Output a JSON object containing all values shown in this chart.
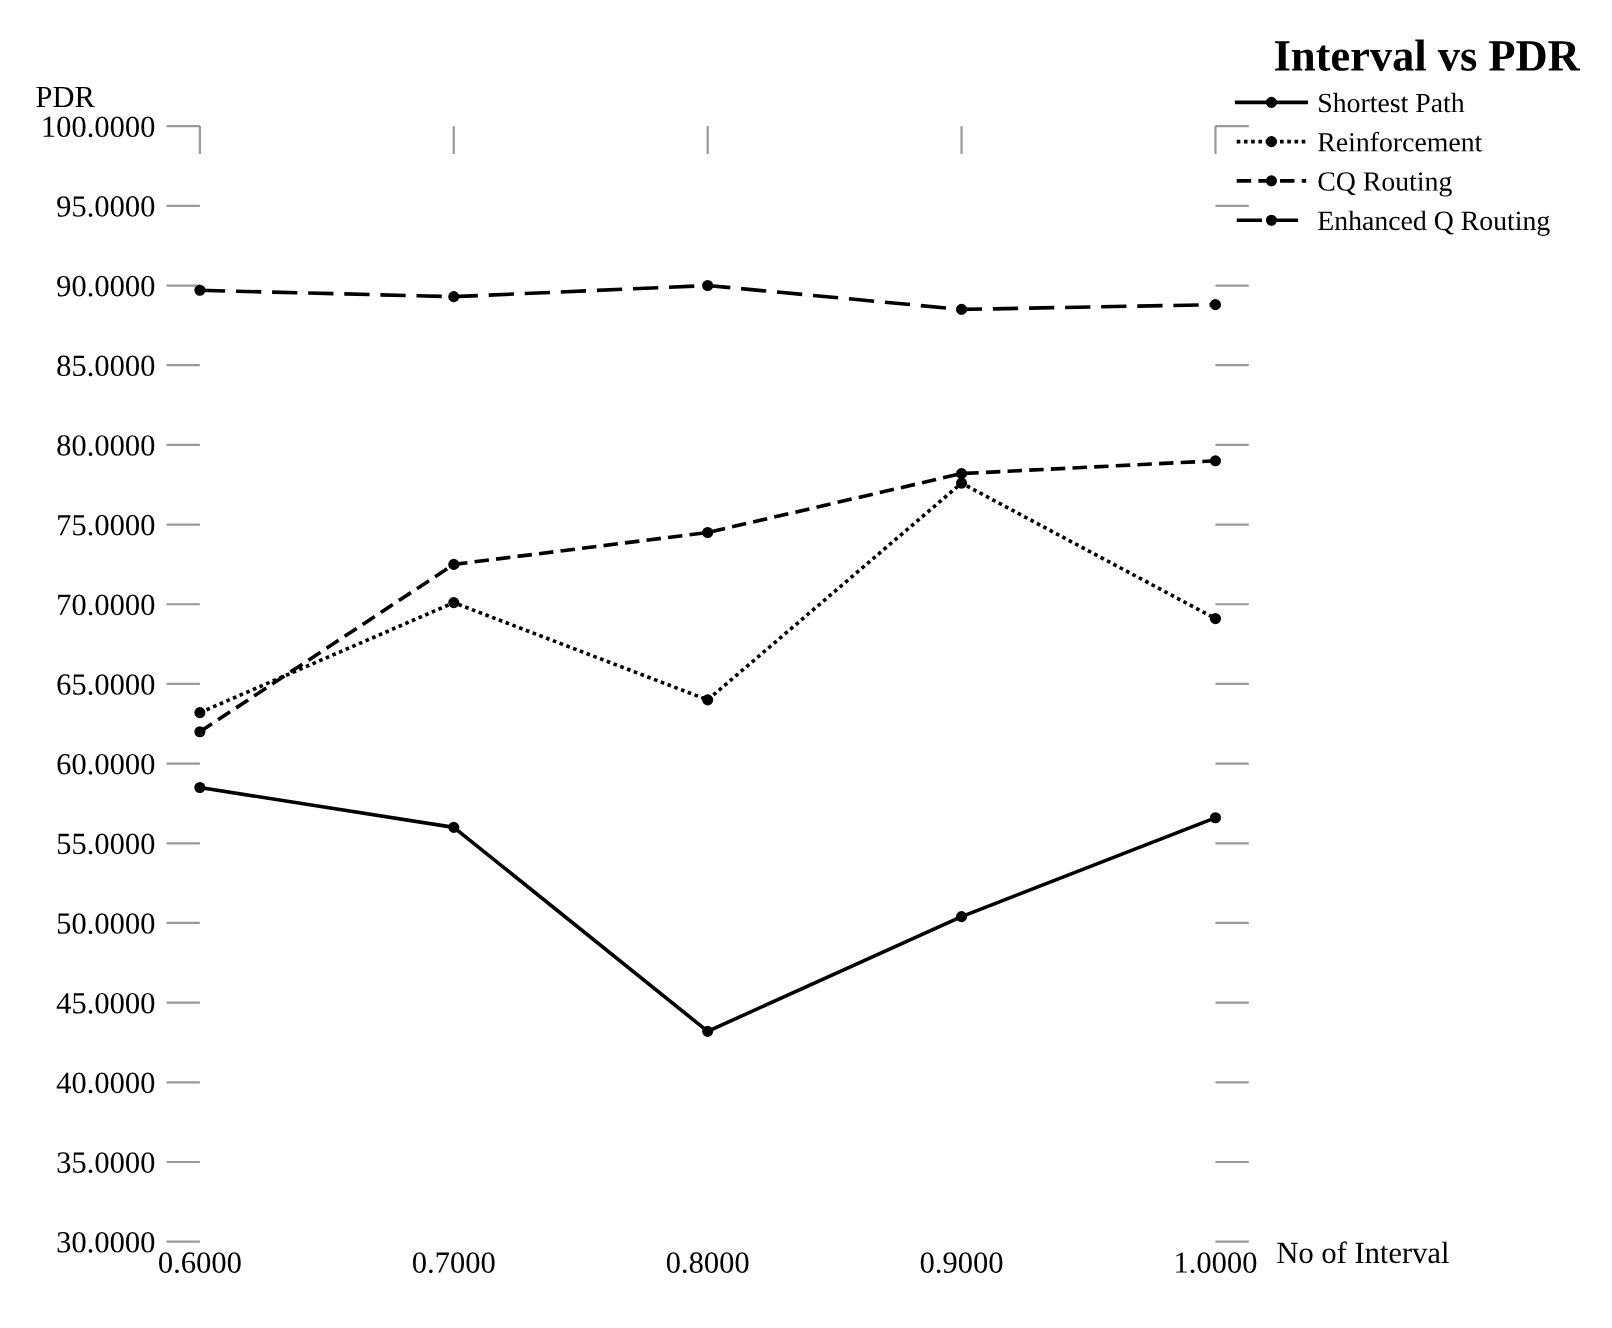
{
  "chart_data": {
    "type": "line",
    "title": "Interval vs PDR",
    "xlabel": "No of Interval",
    "ylabel": "PDR",
    "x": [
      0.6,
      0.7,
      0.8,
      0.9,
      1.0
    ],
    "series": [
      {
        "name": "Shortest Path",
        "color": "#000000",
        "line_style": "solid",
        "values": [
          58.5,
          56.0,
          43.2,
          50.4,
          56.6
        ]
      },
      {
        "name": "Reinforcement",
        "color": "#000000",
        "line_style": "dotted",
        "values": [
          63.2,
          70.1,
          64.0,
          77.6,
          69.1
        ]
      },
      {
        "name": "CQ Routing",
        "color": "#000000",
        "line_style": "dashed",
        "values": [
          62.0,
          72.5,
          74.5,
          78.2,
          79.0
        ]
      },
      {
        "name": "Enhanced Q Routing",
        "color": "#000000",
        "line_style": "longdash",
        "values": [
          89.7,
          89.3,
          90.0,
          88.5,
          88.8
        ]
      }
    ],
    "marker": "circle",
    "legend": "top right",
    "grid": false,
    "xlim": [
      0.6,
      1.0
    ],
    "ylim": [
      30,
      100
    ],
    "xticks": [
      {
        "value": 0.6,
        "label": "0.6000"
      },
      {
        "value": 0.7,
        "label": "0.7000"
      },
      {
        "value": 0.8,
        "label": "0.8000"
      },
      {
        "value": 0.9,
        "label": "0.9000"
      },
      {
        "value": 1.0,
        "label": "1.0000"
      }
    ],
    "yticks": [
      {
        "value": 30,
        "label": "30.0000"
      },
      {
        "value": 35,
        "label": "35.0000"
      },
      {
        "value": 40,
        "label": "40.0000"
      },
      {
        "value": 45,
        "label": "45.0000"
      },
      {
        "value": 50,
        "label": "50.0000"
      },
      {
        "value": 55,
        "label": "55.0000"
      },
      {
        "value": 60,
        "label": "60.0000"
      },
      {
        "value": 65,
        "label": "65.0000"
      },
      {
        "value": 70,
        "label": "70.0000"
      },
      {
        "value": 75,
        "label": "75.0000"
      },
      {
        "value": 80,
        "label": "80.0000"
      },
      {
        "value": 85,
        "label": "85.0000"
      },
      {
        "value": 90,
        "label": "90.0000"
      },
      {
        "value": 95,
        "label": "95.0000"
      },
      {
        "value": 100,
        "label": "100.0000"
      }
    ]
  }
}
